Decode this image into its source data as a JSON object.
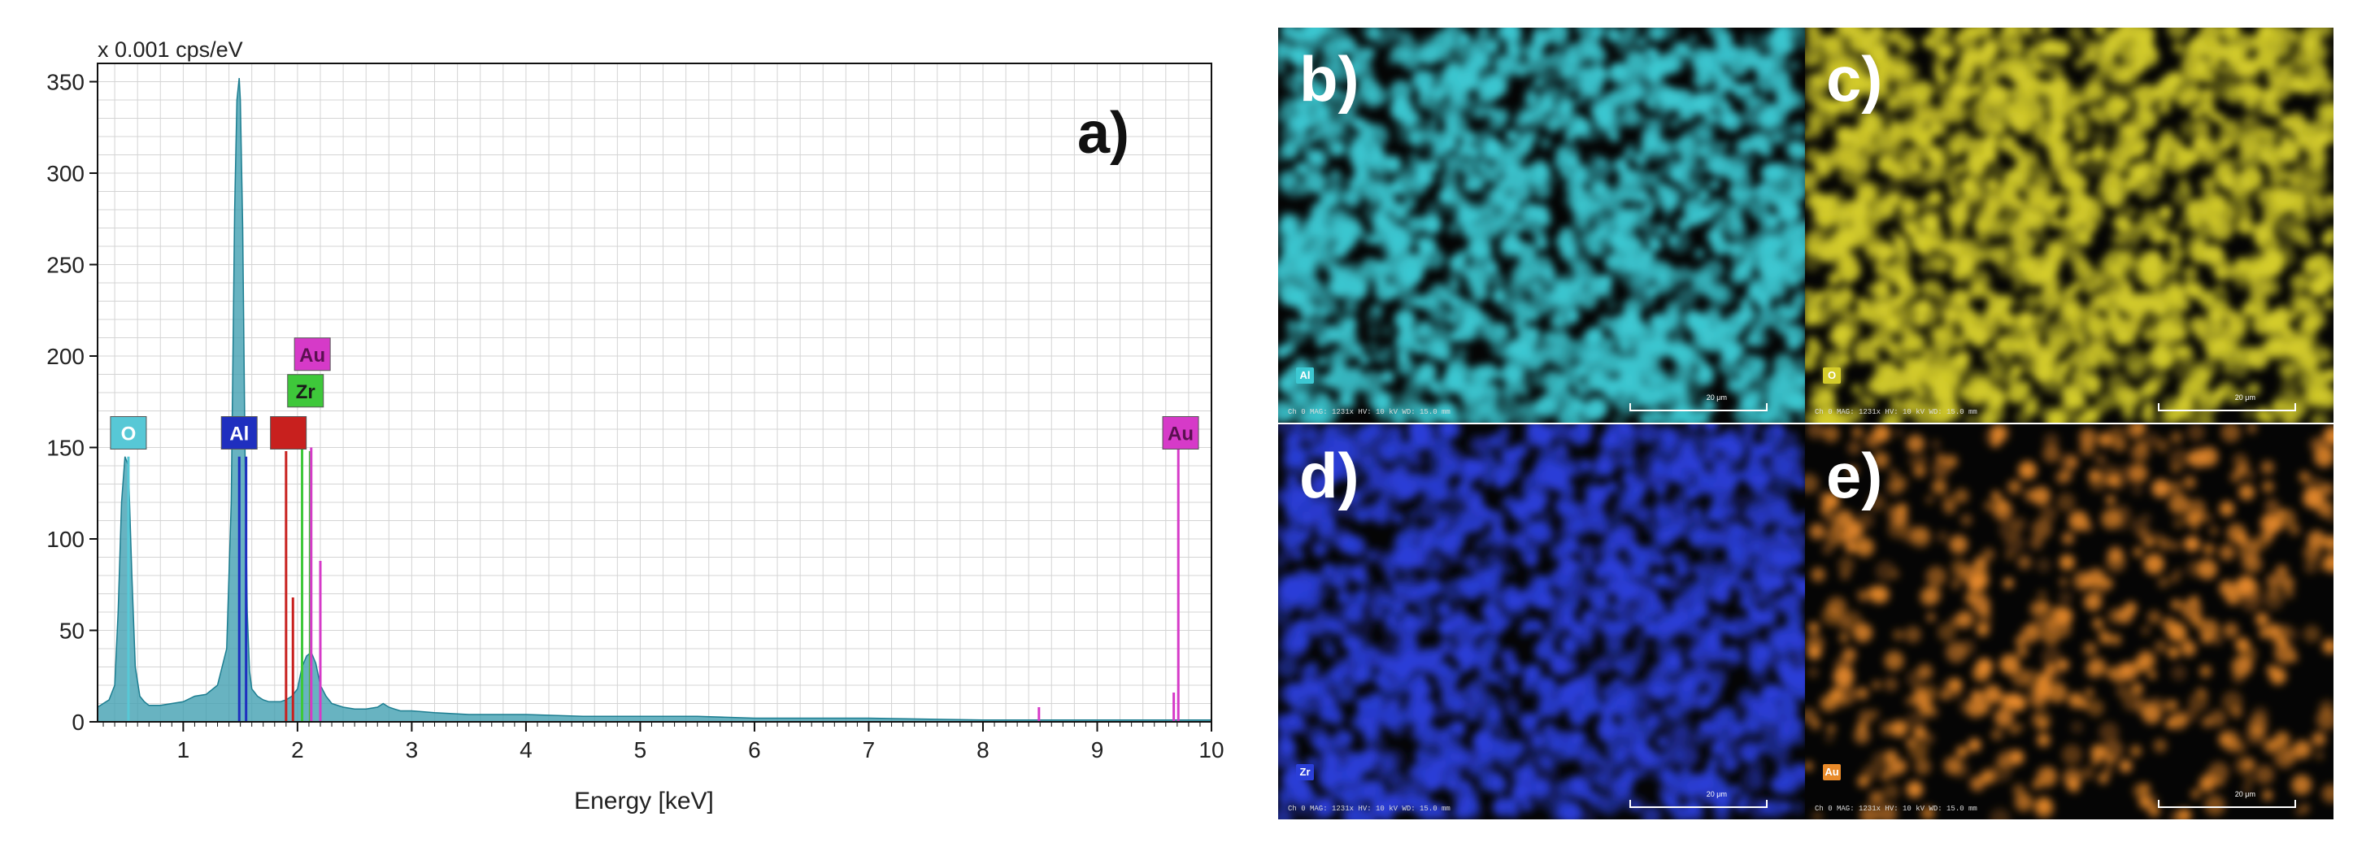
{
  "chart_data": {
    "type": "line",
    "title": "",
    "ylabel": "x 0.001 cps/eV",
    "xlabel": "Energy [keV]",
    "panel_label": "a)",
    "xlim": [
      0.25,
      10
    ],
    "ylim": [
      0,
      360
    ],
    "x_ticks": [
      1,
      2,
      3,
      4,
      5,
      6,
      7,
      8,
      9,
      10
    ],
    "y_ticks": [
      0,
      50,
      100,
      150,
      200,
      250,
      300,
      350
    ],
    "grid": true,
    "series": [
      {
        "color": "#3d9eb0",
        "x": [
          0.25,
          0.3,
          0.35,
          0.4,
          0.43,
          0.46,
          0.49,
          0.52,
          0.55,
          0.58,
          0.62,
          0.66,
          0.7,
          0.8,
          0.9,
          1.0,
          1.1,
          1.2,
          1.3,
          1.38,
          1.42,
          1.45,
          1.47,
          1.49,
          1.5,
          1.52,
          1.54,
          1.56,
          1.58,
          1.6,
          1.65,
          1.7,
          1.75,
          1.8,
          1.85,
          1.9,
          1.95,
          2.0,
          2.04,
          2.08,
          2.12,
          2.16,
          2.2,
          2.25,
          2.3,
          2.4,
          2.5,
          2.6,
          2.7,
          2.75,
          2.8,
          2.85,
          2.9,
          3.0,
          3.2,
          3.5,
          4.0,
          4.5,
          5.0,
          5.5,
          6.0,
          7.0,
          8.0,
          9.0,
          10.0
        ],
        "y": [
          8,
          10,
          12,
          20,
          60,
          120,
          145,
          140,
          80,
          30,
          14,
          11,
          9,
          9,
          10,
          11,
          14,
          15,
          20,
          40,
          120,
          280,
          340,
          352,
          340,
          270,
          150,
          60,
          28,
          18,
          14,
          12,
          11,
          11,
          11,
          12,
          14,
          18,
          30,
          36,
          38,
          32,
          20,
          14,
          10,
          8,
          7,
          7,
          8,
          10,
          8,
          7,
          6,
          6,
          5,
          4,
          4,
          3,
          3,
          3,
          2,
          2,
          1,
          1,
          1
        ]
      }
    ],
    "element_lines": [
      {
        "label": "O",
        "color": "#57c8d6",
        "x": 0.52,
        "height": 145
      },
      {
        "label": "Al",
        "color": "#1f2fbf",
        "x": 1.49,
        "height": 145
      },
      {
        "label": "Al",
        "color": "#1f2fbf",
        "x": 1.55,
        "height": 145
      },
      {
        "label": "",
        "color": "#c8201e",
        "x": 1.9,
        "height": 148
      },
      {
        "label": "",
        "color": "#c8201e",
        "x": 1.96,
        "height": 68
      },
      {
        "label": "Zr",
        "color": "#3ec83a",
        "x": 2.04,
        "height": 150
      },
      {
        "label": "Zr",
        "color": "#3ec83a",
        "x": 2.11,
        "height": 148
      },
      {
        "label": "Au",
        "color": "#d63ac8",
        "x": 2.12,
        "height": 150
      },
      {
        "label": "Au",
        "color": "#d63ac8",
        "x": 2.2,
        "height": 88
      },
      {
        "label": "Au",
        "color": "#d63ac8",
        "x": 8.49,
        "height": 8
      },
      {
        "label": "Au",
        "color": "#d63ac8",
        "x": 9.67,
        "height": 16
      },
      {
        "label": "Au",
        "color": "#d63ac8",
        "x": 9.71,
        "height": 150
      }
    ],
    "element_tags": [
      {
        "label": "O",
        "color": "#57c8d6",
        "text_color": "#ffffff",
        "x": 0.52,
        "y": 158
      },
      {
        "label": "Al",
        "color": "#1f2fbf",
        "text_color": "#ffffff",
        "x": 1.49,
        "y": 158
      },
      {
        "label": "",
        "color": "#c8201e",
        "text_color": "#ffffff",
        "x": 1.92,
        "y": 158
      },
      {
        "label": "Zr",
        "color": "#3ec83a",
        "text_color": "#1a1a1a",
        "x": 2.07,
        "y": 181
      },
      {
        "label": "Au",
        "color": "#d63ac8",
        "text_color": "#5a1050",
        "x": 2.13,
        "y": 201
      },
      {
        "label": "Au",
        "color": "#d63ac8",
        "text_color": "#5a1050",
        "x": 9.73,
        "y": 158
      }
    ]
  },
  "maps": [
    {
      "letter": "b)",
      "element": "Al",
      "color": "#3cc8d2",
      "seed": 11,
      "info": "Ch 0  MAG: 1231x  HV: 10 kV  WD: 15.0 mm",
      "scale": "20 μm"
    },
    {
      "letter": "c)",
      "element": "O",
      "color": "#d4cc2a",
      "seed": 23,
      "info": "Ch 0  MAG: 1231x  HV: 10 kV  WD: 15.0 mm",
      "scale": "20 μm"
    },
    {
      "letter": "d)",
      "element": "Zr",
      "color": "#2a3ed8",
      "seed": 37,
      "info": "Ch 0  MAG: 1231x  HV: 10 kV  WD: 15.0 mm",
      "scale": "20 μm"
    },
    {
      "letter": "e)",
      "element": "Au",
      "color": "#e88a2a",
      "seed": 53,
      "info": "Ch 0  MAG: 1231x  HV: 10 kV  WD: 15.0 mm",
      "scale": "20 μm"
    }
  ]
}
